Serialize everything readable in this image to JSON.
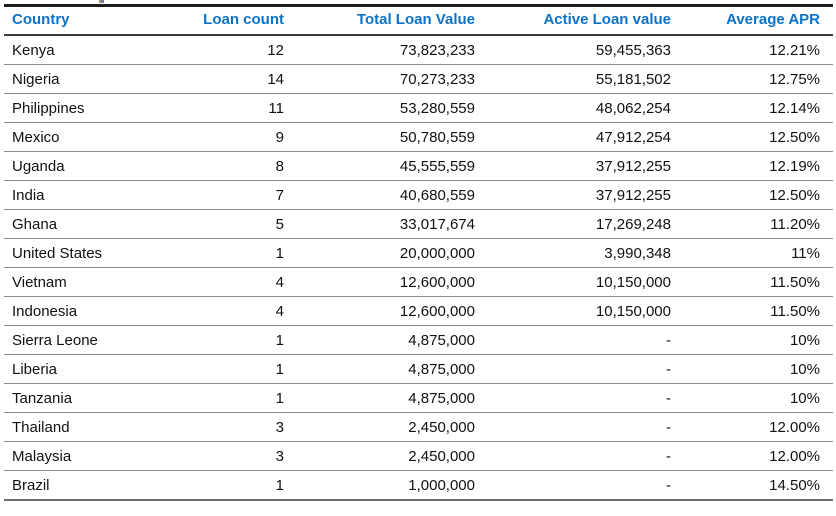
{
  "accent_color": "#0d72c6",
  "text_color": "#111111",
  "table": {
    "columns": [
      {
        "id": "country",
        "label": "Country",
        "align": "left"
      },
      {
        "id": "loan-count",
        "label": "Loan count",
        "align": "right"
      },
      {
        "id": "total-loan-value",
        "label": "Total Loan Value",
        "align": "right"
      },
      {
        "id": "active-loan-value",
        "label": "Active Loan value",
        "align": "right"
      },
      {
        "id": "average-apr",
        "label": "Average APR",
        "align": "right"
      }
    ],
    "rows": [
      [
        "Kenya",
        "12",
        "73,823,233",
        "59,455,363",
        "12.21%"
      ],
      [
        "Nigeria",
        "14",
        "70,273,233",
        "55,181,502",
        "12.75%"
      ],
      [
        "Philippines",
        "11",
        "53,280,559",
        "48,062,254",
        "12.14%"
      ],
      [
        "Mexico",
        "9",
        "50,780,559",
        "47,912,254",
        "12.50%"
      ],
      [
        "Uganda",
        "8",
        "45,555,559",
        "37,912,255",
        "12.19%"
      ],
      [
        "India",
        "7",
        "40,680,559",
        "37,912,255",
        "12.50%"
      ],
      [
        "Ghana",
        "5",
        "33,017,674",
        "17,269,248",
        "11.20%"
      ],
      [
        "United States",
        "1",
        "20,000,000",
        "3,990,348",
        "11%"
      ],
      [
        "Vietnam",
        "4",
        "12,600,000",
        "10,150,000",
        "11.50%"
      ],
      [
        "Indonesia",
        "4",
        "12,600,000",
        "10,150,000",
        "11.50%"
      ],
      [
        "Sierra Leone",
        "1",
        "4,875,000",
        "-",
        "10%"
      ],
      [
        "Liberia",
        "1",
        "4,875,000",
        "-",
        "10%"
      ],
      [
        "Tanzania",
        "1",
        "4,875,000",
        "-",
        "10%"
      ],
      [
        "Thailand",
        "3",
        "2,450,000",
        "-",
        "12.00%"
      ],
      [
        "Malaysia",
        "3",
        "2,450,000",
        "-",
        "12.00%"
      ],
      [
        "Brazil",
        "1",
        "1,000,000",
        "-",
        "14.50%"
      ]
    ]
  }
}
